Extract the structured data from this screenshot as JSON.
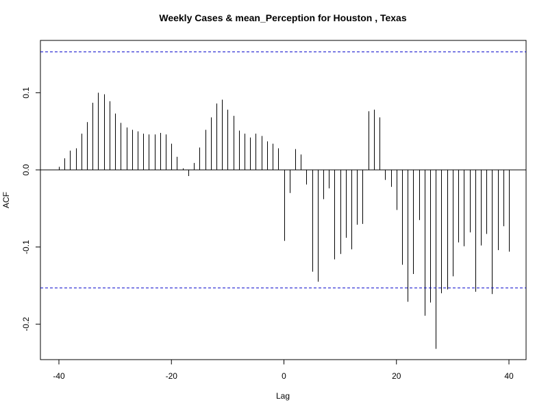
{
  "chart_data": {
    "type": "bar",
    "title": "Weekly Cases & mean_Perception for Houston , Texas",
    "xlabel": "Lag",
    "ylabel": "ACF",
    "xlim": [
      -40,
      40
    ],
    "ylim": [
      -0.245,
      0.16
    ],
    "x_ticks": [
      -40,
      -20,
      0,
      20,
      40
    ],
    "x_tick_labels": [
      "-40",
      "-20",
      "0",
      "20",
      "40"
    ],
    "y_ticks": [
      -0.2,
      -0.1,
      0.0,
      0.1
    ],
    "y_tick_labels": [
      "-0.2",
      "-0.1",
      "0.0",
      "0.1"
    ],
    "confidence_band": 0.153,
    "confidence_color": "#0000cc",
    "bar_color": "#000000",
    "x": [
      -40,
      -39,
      -38,
      -37,
      -36,
      -35,
      -34,
      -33,
      -32,
      -31,
      -30,
      -29,
      -28,
      -27,
      -26,
      -25,
      -24,
      -23,
      -22,
      -21,
      -20,
      -19,
      -18,
      -17,
      -16,
      -15,
      -14,
      -13,
      -12,
      -11,
      -10,
      -9,
      -8,
      -7,
      -6,
      -5,
      -4,
      -3,
      -2,
      -1,
      0,
      1,
      2,
      3,
      4,
      5,
      6,
      7,
      8,
      9,
      10,
      11,
      12,
      13,
      14,
      15,
      16,
      17,
      18,
      19,
      20,
      21,
      22,
      23,
      24,
      25,
      26,
      27,
      28,
      29,
      30,
      31,
      32,
      33,
      34,
      35,
      36,
      37,
      38,
      39,
      40
    ],
    "values": [
      0.004,
      0.015,
      0.025,
      0.028,
      0.047,
      0.062,
      0.087,
      0.1,
      0.098,
      0.089,
      0.073,
      0.061,
      0.055,
      0.052,
      0.05,
      0.047,
      0.046,
      0.046,
      0.048,
      0.046,
      0.034,
      0.017,
      0.002,
      -0.008,
      0.009,
      0.029,
      0.052,
      0.068,
      0.086,
      0.091,
      0.078,
      0.07,
      0.051,
      0.047,
      0.042,
      0.047,
      0.044,
      0.037,
      0.034,
      0.028,
      -0.092,
      -0.03,
      0.027,
      0.02,
      -0.019,
      -0.132,
      -0.145,
      -0.038,
      -0.024,
      -0.116,
      -0.109,
      -0.088,
      -0.103,
      -0.071,
      -0.07,
      0.076,
      0.078,
      0.068,
      -0.013,
      -0.022,
      -0.052,
      -0.123,
      -0.171,
      -0.135,
      -0.065,
      -0.189,
      -0.172,
      -0.232,
      -0.16,
      -0.155,
      -0.138,
      -0.094,
      -0.099,
      -0.081,
      -0.158,
      -0.098,
      -0.083,
      -0.161,
      -0.104,
      -0.073,
      -0.106
    ]
  }
}
